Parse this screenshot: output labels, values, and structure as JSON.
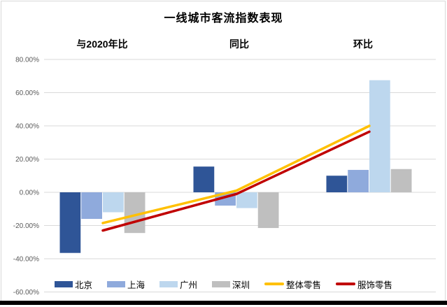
{
  "chart_data": {
    "type": "combo-bar-line",
    "title": "一线城市客流指数表现",
    "categories": [
      "与2020年比",
      "同比",
      "环比"
    ],
    "bar_series": [
      {
        "key": "beijing",
        "name": "北京",
        "color": "#2F5597",
        "values": [
          -36.5,
          15.5,
          10
        ]
      },
      {
        "key": "shanghai",
        "name": "上海",
        "color": "#8FAADC",
        "values": [
          -16,
          -8,
          13.5
        ]
      },
      {
        "key": "guangzhou",
        "name": "广州",
        "color": "#BDD7EE",
        "values": [
          -12,
          -9.5,
          67.5
        ]
      },
      {
        "key": "shenzhen",
        "name": "深圳",
        "color": "#BFBFBF",
        "values": [
          -24.5,
          -21.5,
          14
        ]
      }
    ],
    "line_series": [
      {
        "key": "overall-retail",
        "name": "整体零售",
        "color": "#FFC000",
        "values": [
          -18.5,
          1,
          40
        ]
      },
      {
        "key": "apparel-retail",
        "name": "服饰零售",
        "color": "#C00000",
        "values": [
          -23,
          -1,
          36.5
        ]
      }
    ],
    "y_axis": {
      "min": -60,
      "max": 80,
      "step": 20,
      "tick_values": [
        80,
        60,
        40,
        20,
        0,
        -20,
        -40,
        -60
      ],
      "tick_labels": [
        "80.00%",
        "60.00%",
        "40.00%",
        "20.00%",
        "0.00%",
        "-20.00%",
        "-40.00%",
        "-60.00%"
      ]
    },
    "grid": true,
    "legend_position": "bottom"
  },
  "colors": {
    "background": "#FFFFFF",
    "frame_border": "#D9D9D9",
    "gridline": "#D9D9D9",
    "axis_label": "#595959",
    "title_text": "#000000",
    "bottom_bar": "#000000"
  }
}
